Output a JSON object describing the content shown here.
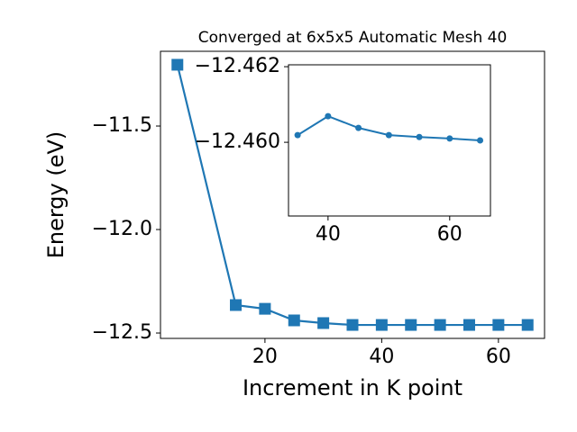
{
  "chart_data": [
    {
      "type": "line",
      "title": "Converged at 6x5x5 Automatic Mesh 40",
      "x_label": "Increment in K point",
      "y_label": "Energy (eV)",
      "x": [
        5,
        15,
        20,
        25,
        30,
        35,
        40,
        45,
        50,
        55,
        60,
        65
      ],
      "values": [
        -11.204,
        -12.365,
        -12.383,
        -12.439,
        -12.452,
        -12.461,
        -12.461,
        -12.461,
        -12.461,
        -12.461,
        -12.461,
        -12.461
      ],
      "color": "#1f77b4",
      "marker": "square",
      "xlim": [
        2.1,
        67.9
      ],
      "ylim": [
        -12.526,
        -11.139
      ],
      "xticks": [
        20,
        40,
        60
      ],
      "yticks": [
        {
          "value": -11.5,
          "label": "−11.5"
        },
        {
          "value": -12.0,
          "label": "−12.0"
        },
        {
          "value": -12.5,
          "label": "−12.5"
        }
      ]
    },
    {
      "type": "line",
      "x": [
        35,
        40,
        45,
        50,
        55,
        60,
        65
      ],
      "values": [
        -12.46019,
        -12.46069,
        -12.46038,
        -12.46019,
        -12.46014,
        -12.4601,
        -12.46005
      ],
      "color": "#1f77b4",
      "marker": "circle",
      "xlim": [
        33.5,
        66.7
      ],
      "ylim": [
        -12.45805,
        -12.46205
      ],
      "xticks": [
        40,
        60
      ],
      "yticks": [
        {
          "value": -12.462,
          "label": "−12.462"
        },
        {
          "value": -12.46,
          "label": "−12.460"
        }
      ]
    }
  ]
}
